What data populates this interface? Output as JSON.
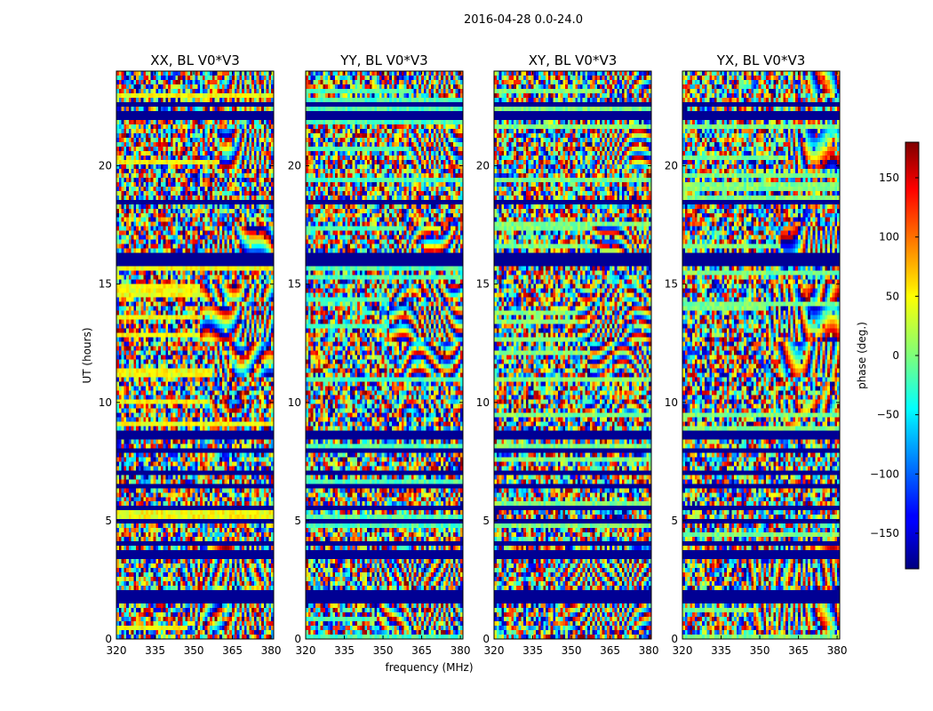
{
  "chart_data": {
    "type": "heatmap",
    "title": "2016-04-28 0.0-24.0",
    "xlabel": "frequency (MHz)",
    "ylabel": "UT (hours)",
    "xlim": [
      320,
      381
    ],
    "ylim": [
      0,
      24
    ],
    "xticks": [
      "320",
      "335",
      "350",
      "365",
      "380"
    ],
    "xtick_values": [
      320,
      335,
      350,
      365,
      380
    ],
    "yticks": [
      "0",
      "5",
      "10",
      "15",
      "20"
    ],
    "ytick_values": [
      0,
      5,
      10,
      15,
      20
    ],
    "panels": [
      {
        "title": "XX, BL V0*V3",
        "polarization": "XX"
      },
      {
        "title": "YY, BL V0*V3",
        "polarization": "YY"
      },
      {
        "title": "XY, BL V0*V3",
        "polarization": "XY"
      },
      {
        "title": "YX, BL V0*V3",
        "polarization": "YX"
      }
    ],
    "colorbar": {
      "label": "phase (deg.)",
      "range": [
        -180,
        180
      ],
      "ticks": [
        "−150",
        "−100",
        "−50",
        "0",
        "50",
        "100",
        "150"
      ],
      "tick_values": [
        -150,
        -100,
        -50,
        0,
        50,
        100,
        150
      ],
      "colormap": "jet"
    },
    "flagged_ut_hours": [
      1.5,
      1.6,
      1.7,
      2.0,
      3.5,
      3.6,
      4.0,
      4.5,
      5.0,
      5.5,
      6.0,
      6.5,
      7.0,
      7.5,
      8.0,
      8.5,
      8.8,
      9.0,
      13.5,
      15.8,
      16.0,
      16.2,
      18.5,
      19.5,
      21.0,
      22.0,
      22.3,
      22.6
    ]
  }
}
